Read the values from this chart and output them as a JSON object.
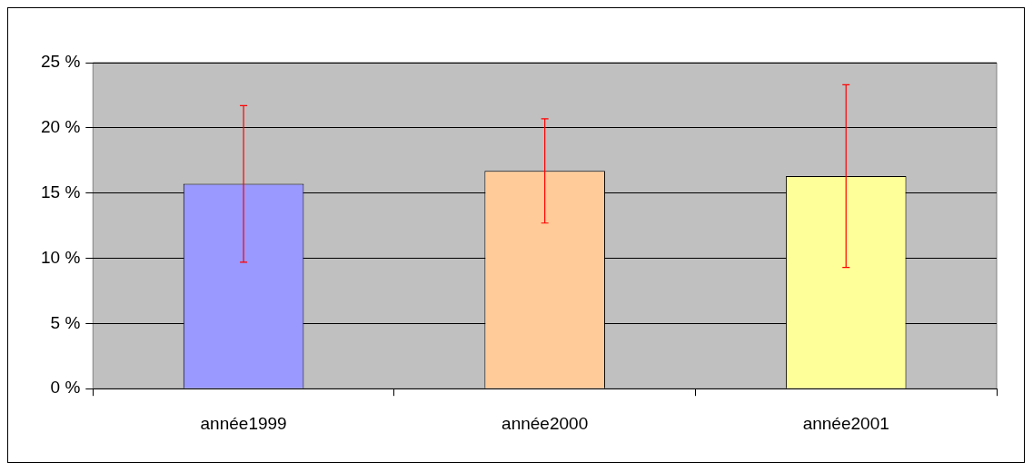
{
  "chart_data": {
    "type": "bar",
    "categories": [
      "année1999",
      "année2000",
      "année2001"
    ],
    "values": [
      15.7,
      16.7,
      16.3
    ],
    "colors": [
      "#9999ff",
      "#ffcc99",
      "#ffff99"
    ],
    "errors": [
      6,
      4,
      7
    ],
    "ylim": [
      0,
      25
    ],
    "yticks": [
      {
        "value": 0,
        "label": "0 %"
      },
      {
        "value": 5,
        "label": "5 %"
      },
      {
        "value": 10,
        "label": "10 %"
      },
      {
        "value": 15,
        "label": "15 %"
      },
      {
        "value": 20,
        "label": "20 %"
      },
      {
        "value": 25,
        "label": "25 %"
      }
    ],
    "grid": "y"
  }
}
